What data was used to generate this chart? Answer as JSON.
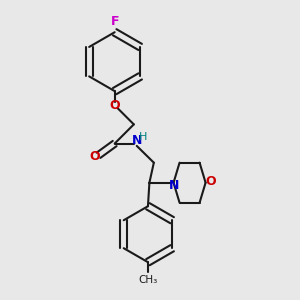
{
  "bg_color": "#e8e8e8",
  "bond_color": "#1a1a1a",
  "O_color": "#cc0000",
  "N_color": "#0000cc",
  "F_color": "#cc00cc",
  "H_color": "#008080",
  "lw": 1.5,
  "dbo": 0.012,
  "fig_w": 3.0,
  "fig_h": 3.0,
  "dpi": 100,
  "xlim": [
    0,
    1
  ],
  "ylim": [
    0,
    1
  ]
}
